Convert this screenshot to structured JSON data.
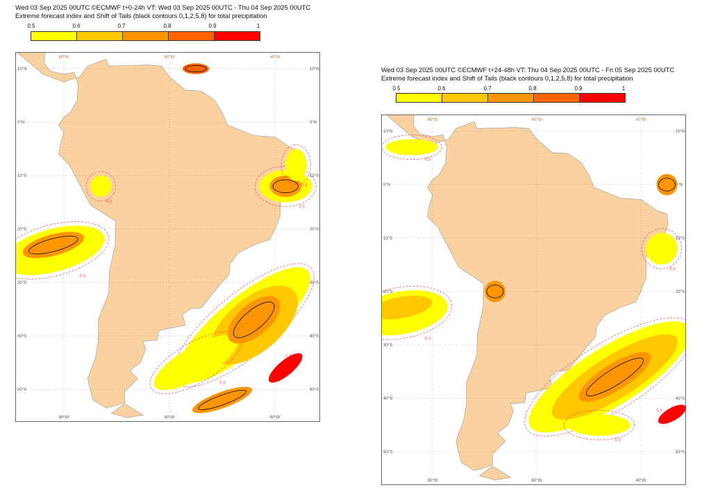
{
  "panels": [
    {
      "title_line1": "Wed 03 Sep 2025 00UTC ©ECMWF t+0-24h  VT: Wed 03 Sep 2025 00UTC - Thu 04 Sep 2025 00UTC",
      "title_line2": "Extreme forecast index and Shift of Tails (black contours 0,1,2,5,8) for total precipitation",
      "lon_labels": [
        "80°W",
        "60°W",
        "40°W"
      ],
      "lat_labels": [
        "10°N",
        "0°N",
        "10°S",
        "20°S",
        "30°S",
        "40°S",
        "50°S"
      ],
      "contour_label": "0.3"
    },
    {
      "title_line1": "Wed 03 Sep 2025 00UTC ©ECMWF t+24-48h  VT: Thu 04 Sep 2025 00UTC - Fri 05 Sep 2025 00UTC",
      "title_line2": "Extreme forecast index and Shift of Tails (black contours 0,1,2,5,8) for total precipitation",
      "lon_labels": [
        "80°W",
        "60°W",
        "40°W"
      ],
      "lat_labels": [
        "10°N",
        "0°N",
        "10°S",
        "20°S",
        "30°S",
        "40°S",
        "50°S"
      ],
      "contour_label": "0.3"
    }
  ],
  "colorbar": {
    "ticks": [
      "0.5",
      "0.6",
      "0.7",
      "0.8",
      "0.9",
      "1"
    ],
    "colors": [
      "#ffff00",
      "#ffc800",
      "#ff9600",
      "#ff6400",
      "#ff0000"
    ]
  },
  "colors": {
    "land": "#f9d2a0",
    "ocean": "#ffffff",
    "lakes": "#999999",
    "contour_03": "#e8505a",
    "sot_contour": "#000000"
  }
}
